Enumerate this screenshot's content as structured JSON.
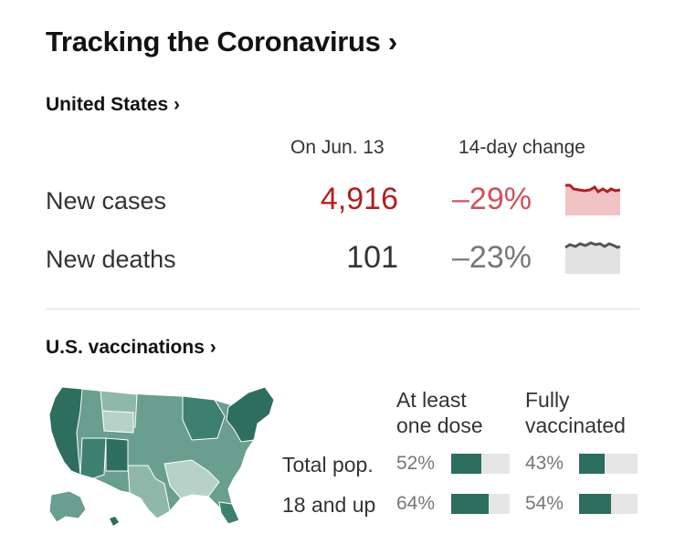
{
  "header": {
    "title": "Tracking the Coronavirus ›"
  },
  "us": {
    "link_label": "United States ›",
    "col_date": "On Jun. 13",
    "col_change": "14-day change",
    "rows": [
      {
        "label": "New cases",
        "value": "4,916",
        "change": "–29%"
      },
      {
        "label": "New deaths",
        "value": "101",
        "change": "–23%"
      }
    ]
  },
  "colors": {
    "cases": "#b51e1e",
    "cases_light": "#f2c3c5",
    "deaths": "#555555",
    "deaths_light": "#e2e2e2",
    "vax": "#2e6e5e"
  },
  "vaccinations": {
    "link_label": "U.S. vaccinations ›",
    "head_dose_1": "At least",
    "head_dose_2": "one dose",
    "head_full_1": "Fully",
    "head_full_2": "vaccinated",
    "rows": [
      {
        "label": "Total pop.",
        "dose_pct": "52%",
        "dose_frac": 0.52,
        "full_pct": "43%",
        "full_frac": 0.43
      },
      {
        "label": "18 and up",
        "dose_pct": "64%",
        "dose_frac": 0.64,
        "full_pct": "54%",
        "full_frac": 0.54
      }
    ]
  }
}
